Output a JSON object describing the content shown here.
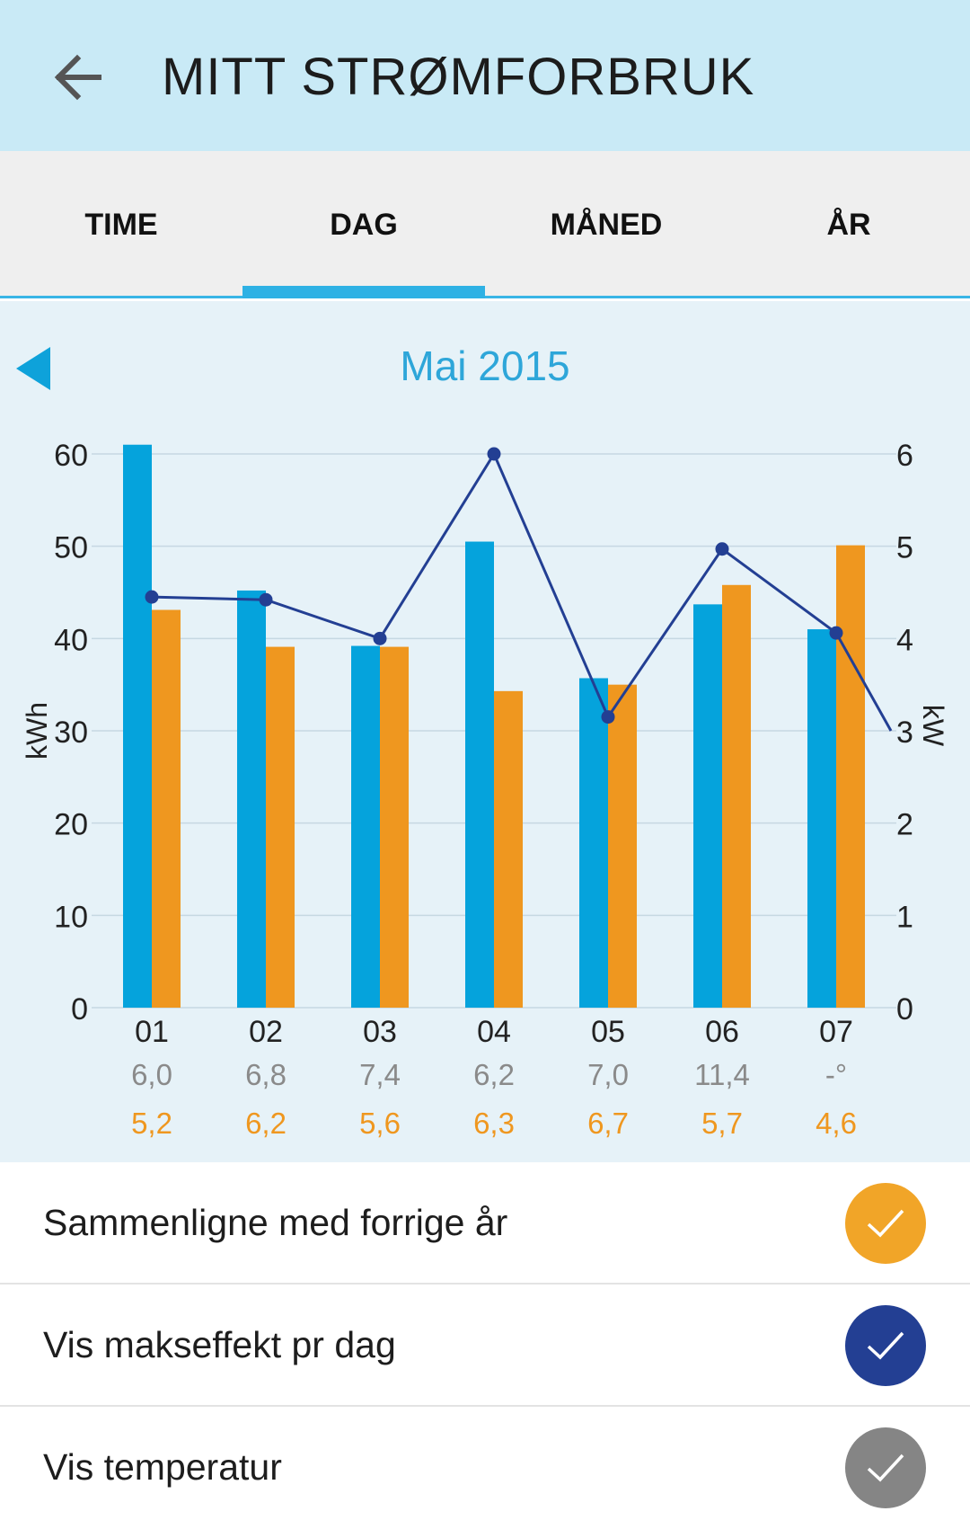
{
  "header": {
    "title": "MITT STRØMFORBRUK",
    "back_icon": "arrow-left-icon"
  },
  "tabs": [
    {
      "label": "TIME",
      "active": false
    },
    {
      "label": "DAG",
      "active": true
    },
    {
      "label": "MÅNED",
      "active": false
    },
    {
      "label": "ÅR",
      "active": false
    }
  ],
  "period": {
    "title": "Mai 2015",
    "prev_icon": "triangle-left-icon"
  },
  "colors": {
    "current_bar": "#05a3dc",
    "previous_bar": "#ef971f",
    "max_power_line": "#233f93",
    "temperature_row": "#8a8a8a",
    "compare_row": "#ef971f",
    "tab_indicator": "#2eb1e4"
  },
  "chart_data": {
    "type": "bar",
    "categories": [
      "01",
      "02",
      "03",
      "04",
      "05",
      "06",
      "07"
    ],
    "series": [
      {
        "values": [
          61,
          45.2,
          39.2,
          50.5,
          35.7,
          43.7,
          41
        ]
      },
      {
        "values": [
          43.1,
          39.1,
          39.1,
          34.3,
          35,
          45.8,
          50.1
        ]
      }
    ],
    "line_series": {
      "axis": "right",
      "values": [
        4.45,
        4.42,
        4.0,
        6.0,
        3.15,
        4.97,
        4.06
      ],
      "tail_value": 3.0
    },
    "ylabel": "kWh",
    "ylim": [
      0,
      60
    ],
    "yticks": [
      0,
      10,
      20,
      30,
      40,
      50,
      60
    ],
    "y2label": "kW",
    "y2lim": [
      0,
      6
    ],
    "y2ticks": [
      0,
      1,
      2,
      3,
      4,
      5,
      6
    ],
    "grid": true,
    "row_temperature": [
      "6,0",
      "6,8",
      "7,4",
      "6,2",
      "7,0",
      "11,4",
      "-°"
    ],
    "row_compare": [
      "5,2",
      "6,2",
      "5,6",
      "6,3",
      "6,7",
      "5,7",
      "4,6"
    ]
  },
  "toggles": [
    {
      "label": "Sammenligne med forrige år",
      "color": "#f1a528",
      "icon": "checkmark-icon"
    },
    {
      "label": "Vis makseffekt pr dag",
      "color": "#233f93",
      "icon": "checkmark-icon"
    },
    {
      "label": "Vis temperatur",
      "color": "#858585",
      "icon": "checkmark-icon"
    }
  ]
}
